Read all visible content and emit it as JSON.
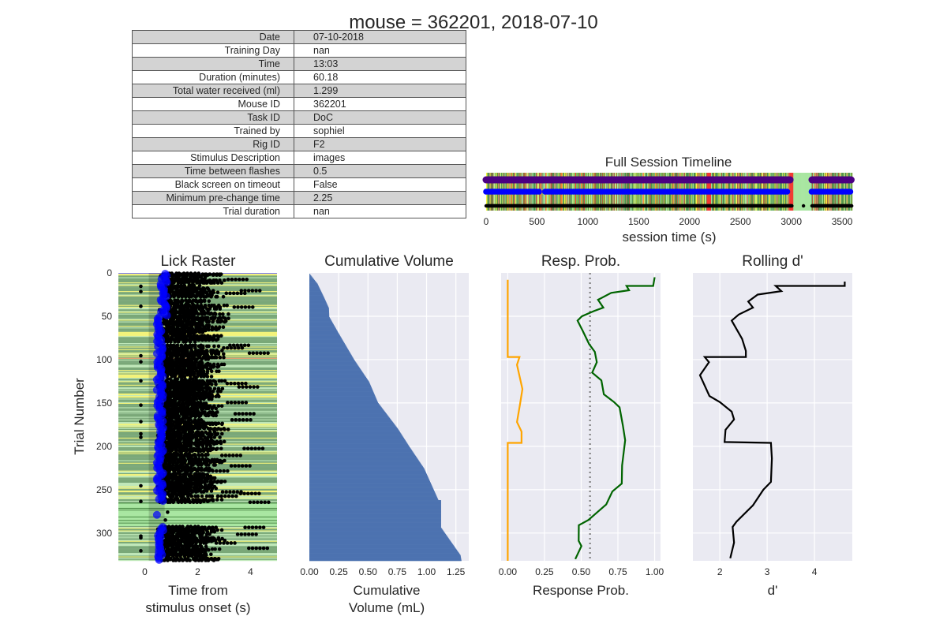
{
  "suptitle": "mouse = 362201, 2018-07-10",
  "info_table": [
    {
      "key": "Date",
      "value": "07-10-2018"
    },
    {
      "key": "Training Day",
      "value": "nan"
    },
    {
      "key": "Time",
      "value": "13:03"
    },
    {
      "key": "Duration (minutes)",
      "value": "60.18"
    },
    {
      "key": "Total water received (ml)",
      "value": "1.299"
    },
    {
      "key": "Mouse ID",
      "value": "362201"
    },
    {
      "key": "Task ID",
      "value": "DoC"
    },
    {
      "key": "Trained by",
      "value": "sophiel"
    },
    {
      "key": "Rig ID",
      "value": "F2"
    },
    {
      "key": "Stimulus Description",
      "value": "images"
    },
    {
      "key": "Time between flashes",
      "value": "0.5"
    },
    {
      "key": "Black screen on timeout",
      "value": "False"
    },
    {
      "key": "Minimum pre-change time",
      "value": "2.25"
    },
    {
      "key": "Trial duration",
      "value": "nan"
    }
  ],
  "colors": {
    "axes_bg": "#eaeaf2",
    "grid": "#ffffff",
    "bar": "#4c72b0",
    "hit": "#006400",
    "false_alarm": "#ffa500",
    "dprime": "#000000",
    "dotted": "#808080",
    "purple": "#4b0082",
    "blue": "#0000ff",
    "dark_green": "#4f8f4a",
    "light_green": "#a8e6a0",
    "yellow": "#f5f542",
    "red": "#f03c32"
  },
  "chart_data": [
    {
      "id": "timeline",
      "type": "scatter",
      "title": "Full Session Timeline",
      "xlabel": "session time (s)",
      "ylabel": "",
      "xlim": [
        0,
        3600
      ],
      "xticks": [
        0,
        500,
        1000,
        1500,
        2000,
        2500,
        3000,
        3500
      ],
      "grid": true,
      "rows": [
        "stimulus flashes (purple)",
        "rewards (blue)",
        "licks (black)"
      ],
      "gaps_s": [
        [
          520,
          580
        ],
        [
          2960,
          3200
        ]
      ],
      "timeouts_s": [
        2190,
        3000
      ]
    },
    {
      "id": "lick_raster",
      "type": "scatter",
      "title": "Lick Raster",
      "xlabel": "Time from\nstimulus onset (s)",
      "xlabel_lines": [
        "Time from",
        "stimulus onset (s)"
      ],
      "ylabel": "Trial Number",
      "xlim": [
        -1,
        5
      ],
      "ylim": [
        0,
        332
      ],
      "xticks": [
        0,
        2,
        4
      ],
      "yticks": [
        0,
        50,
        100,
        150,
        200,
        250,
        300
      ],
      "response_window_s": [
        0.15,
        0.75
      ],
      "n_trials": 332,
      "no_response_trials": [
        265,
        292
      ]
    },
    {
      "id": "cumulative_volume",
      "type": "bar",
      "title": "Cumulative Volume",
      "xlabel_lines": [
        "Cumulative",
        "Volume (mL)"
      ],
      "xlim": [
        0,
        1.36
      ],
      "ylim": [
        0,
        332
      ],
      "xticks": [
        "0.00",
        "0.25",
        "0.50",
        "0.75",
        "1.00",
        "1.25"
      ],
      "trials": [
        0,
        12,
        28,
        40,
        50,
        69,
        100,
        125,
        149,
        179,
        200,
        225,
        261,
        262,
        293,
        300,
        325,
        332
      ],
      "values": [
        0,
        0.07,
        0.127,
        0.167,
        0.17,
        0.25,
        0.385,
        0.51,
        0.586,
        0.755,
        0.855,
        0.98,
        1.1,
        1.124,
        1.124,
        1.16,
        1.29,
        1.299
      ]
    },
    {
      "id": "response_prob",
      "type": "line",
      "title": "Resp. Prob.",
      "xlabel": "Response Prob.",
      "xlim": [
        -0.045,
        1.04
      ],
      "ylim": [
        0,
        332
      ],
      "xticks": [
        "0.00",
        "0.25",
        "0.50",
        "0.75",
        "1.00"
      ],
      "reference_line": 0.56,
      "series": [
        {
          "name": "hit rate",
          "trials": [
            5,
            15,
            15,
            20,
            23,
            31,
            40,
            44,
            50,
            55,
            67,
            82,
            91,
            103,
            115,
            124,
            140,
            149,
            155,
            176,
            193,
            222,
            243,
            252,
            267,
            285,
            291,
            309,
            315,
            330
          ],
          "values": [
            1.0,
            1.0,
            0.8,
            0.83,
            0.71,
            0.61,
            0.65,
            0.59,
            0.5,
            0.47,
            0.51,
            0.55,
            0.59,
            0.6,
            0.58,
            0.64,
            0.65,
            0.72,
            0.77,
            0.78,
            0.8,
            0.77,
            0.77,
            0.72,
            0.67,
            0.54,
            0.48,
            0.48,
            0.5,
            0.46
          ]
        },
        {
          "name": "false alarm rate",
          "trials": [
            8,
            97,
            97,
            106,
            134,
            150,
            172,
            183,
            196,
            196,
            332
          ],
          "values": [
            0,
            0,
            0.08,
            0.063,
            0.1,
            0.085,
            0.063,
            0.094,
            0.094,
            0,
            0
          ]
        }
      ]
    },
    {
      "id": "rolling_dprime",
      "type": "line",
      "title": "Rolling d'",
      "xlabel": "d'",
      "xlim": [
        1.43,
        4.8
      ],
      "ylim": [
        0,
        332
      ],
      "xticks": [
        2,
        3,
        4
      ],
      "trials": [
        10,
        15,
        15,
        21,
        25,
        33,
        40,
        48,
        55,
        76,
        90,
        97,
        97,
        103,
        118,
        130,
        142,
        149,
        160,
        169,
        181,
        195,
        196,
        214,
        241,
        250,
        268,
        287,
        293,
        311,
        329
      ],
      "values": [
        4.64,
        4.64,
        3.18,
        3.3,
        2.8,
        2.6,
        2.7,
        2.4,
        2.25,
        2.47,
        2.55,
        2.55,
        1.68,
        1.77,
        1.58,
        1.68,
        1.78,
        2.0,
        2.25,
        2.3,
        2.12,
        2.1,
        3.08,
        3.1,
        3.08,
        2.92,
        2.7,
        2.35,
        2.27,
        2.3,
        2.22
      ]
    }
  ]
}
